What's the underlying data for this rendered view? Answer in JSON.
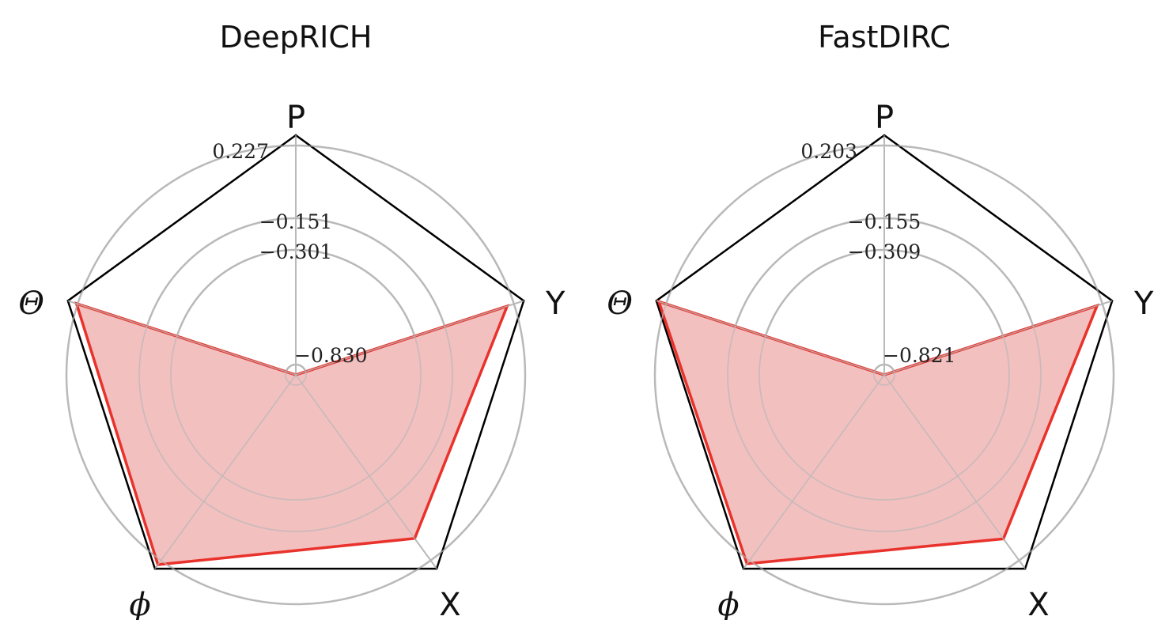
{
  "chart_data": [
    {
      "type": "radar",
      "title": "DeepRICH",
      "axes": [
        "P",
        "Y",
        "X",
        "ϕ",
        "Θ"
      ],
      "axis_styles": [
        "text",
        "text",
        "text",
        "math",
        "math"
      ],
      "ring_labels": [
        "0.227",
        "−0.151",
        "−0.301",
        "−0.830"
      ],
      "values": [
        -0.83,
        0.15,
        0.062,
        0.205,
        0.187
      ],
      "range": [
        -0.83,
        0.227
      ],
      "series": [
        {
          "values": [
            -0.83,
            0.15,
            0.062,
            0.205,
            0.187
          ],
          "color": "#e8322b",
          "fill": "#f2bdbd"
        }
      ],
      "grid": true
    },
    {
      "type": "radar",
      "title": "FastDIRC",
      "axes": [
        "P",
        "Y",
        "X",
        "ϕ",
        "Θ"
      ],
      "axis_styles": [
        "text",
        "text",
        "text",
        "math",
        "math"
      ],
      "ring_labels": [
        "0.203",
        "−0.155",
        "−0.309",
        "−0.821"
      ],
      "values": [
        -0.821,
        0.135,
        0.045,
        0.177,
        0.192
      ],
      "range": [
        -0.821,
        0.203
      ],
      "series": [
        {
          "values": [
            -0.821,
            0.135,
            0.045,
            0.177,
            0.192
          ],
          "color": "#e8322b",
          "fill": "#f2bdbd"
        }
      ],
      "grid": true
    }
  ],
  "colors": {
    "outline": "#000000",
    "grid": "#b9b9b9",
    "series_line": "#e8322b",
    "series_fill": "#f2bdbd"
  }
}
